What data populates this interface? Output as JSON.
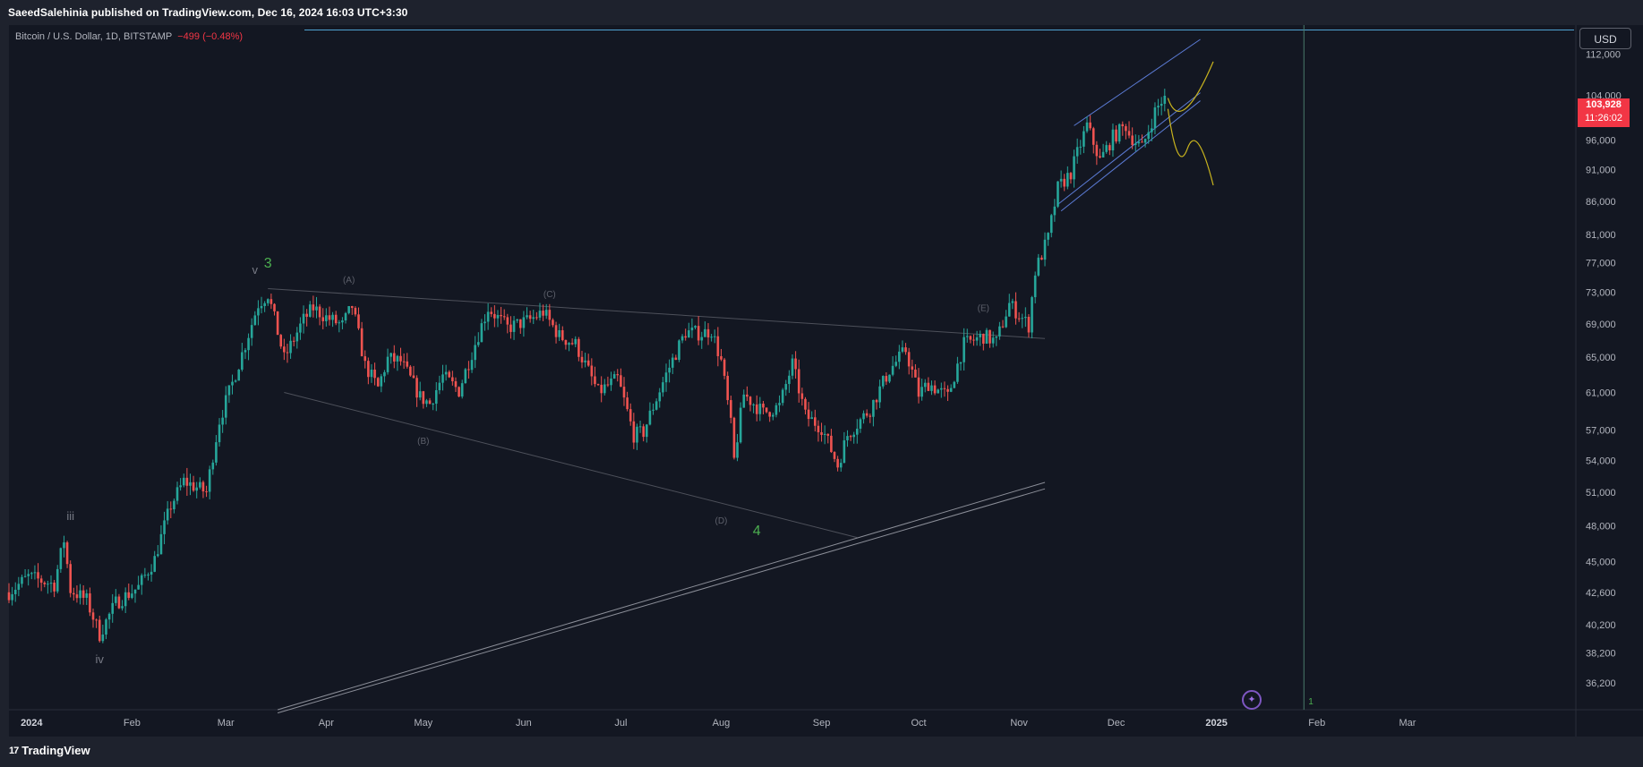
{
  "header": {
    "published": "SaeedSalehinia published on TradingView.com, Dec 16, 2024 16:03 UTC+3:30"
  },
  "legend": {
    "symbol": "Bitcoin / U.S. Dollar, 1D, BITSTAMP",
    "change": "−499 (−0.48%)"
  },
  "price_scale": {
    "currency": "USD",
    "last_price": "103,928",
    "countdown": "11:26:02"
  },
  "footer": {
    "brand": "TradingView",
    "logo_mark": "17"
  },
  "colors": {
    "background": "#131722",
    "up": "#26a69a",
    "down": "#ef5350",
    "channel": "#5b7bd5",
    "projection": "#c9b41e",
    "wave_green": "#4caf50",
    "wave_label": "#787b86",
    "hline": "#4fa3d1"
  },
  "chart_data": {
    "type": "candlestick",
    "symbol": "BTCUSD",
    "timeframe": "1D",
    "exchange": "BITSTAMP",
    "y_scale": "log",
    "ylim": [
      34500,
      118000
    ],
    "y_ticks": [
      "112,000",
      "104,000",
      "96,000",
      "91,000",
      "86,000",
      "81,000",
      "77,000",
      "73,000",
      "69,000",
      "65,000",
      "61,000",
      "57,000",
      "54,000",
      "51,000",
      "48,000",
      "45,000",
      "42,600",
      "40,200",
      "38,200",
      "36,200"
    ],
    "y_tick_values": [
      112000,
      104000,
      96000,
      91000,
      86000,
      81000,
      77000,
      73000,
      69000,
      65000,
      61000,
      57000,
      54000,
      51000,
      48000,
      45000,
      42600,
      40200,
      38200,
      36200
    ],
    "x_ticks": [
      "2024",
      "Feb",
      "Mar",
      "Apr",
      "May",
      "Jun",
      "Jul",
      "Aug",
      "Sep",
      "Oct",
      "Nov",
      "Dec",
      "2025",
      "Feb",
      "Mar"
    ],
    "x_tick_dates": [
      "2024-01-01",
      "2024-02-01",
      "2024-03-01",
      "2024-04-01",
      "2024-05-01",
      "2024-06-01",
      "2024-07-01",
      "2024-08-01",
      "2024-09-01",
      "2024-10-01",
      "2024-11-01",
      "2024-12-01",
      "2025-01-01",
      "2025-02-01",
      "2025-03-01"
    ],
    "xlim": [
      "2023-12-25",
      "2025-04-22"
    ],
    "price_path": [
      [
        "2023-12-25",
        42600
      ],
      [
        "2023-12-31",
        43800
      ],
      [
        "2024-01-08",
        43200
      ],
      [
        "2024-01-11",
        46800
      ],
      [
        "2024-01-13",
        42800
      ],
      [
        "2024-01-18",
        42000
      ],
      [
        "2024-01-22",
        39500
      ],
      [
        "2024-01-27",
        41800
      ],
      [
        "2024-02-03",
        43000
      ],
      [
        "2024-02-08",
        45200
      ],
      [
        "2024-02-13",
        49800
      ],
      [
        "2024-02-17",
        52000
      ],
      [
        "2024-02-24",
        51000
      ],
      [
        "2024-02-28",
        58000
      ],
      [
        "2024-03-03",
        62000
      ],
      [
        "2024-03-07",
        66500
      ],
      [
        "2024-03-11",
        71500
      ],
      [
        "2024-03-14",
        72800
      ],
      [
        "2024-03-19",
        64800
      ],
      [
        "2024-03-25",
        69500
      ],
      [
        "2024-03-28",
        71000
      ],
      [
        "2024-04-01",
        69800
      ],
      [
        "2024-04-06",
        68800
      ],
      [
        "2024-04-09",
        71200
      ],
      [
        "2024-04-13",
        64000
      ],
      [
        "2024-04-17",
        61500
      ],
      [
        "2024-04-20",
        64800
      ],
      [
        "2024-04-24",
        64500
      ],
      [
        "2024-04-30",
        60500
      ],
      [
        "2024-05-03",
        59800
      ],
      [
        "2024-05-07",
        62800
      ],
      [
        "2024-05-12",
        61200
      ],
      [
        "2024-05-16",
        65500
      ],
      [
        "2024-05-21",
        71000
      ],
      [
        "2024-05-27",
        68500
      ],
      [
        "2024-06-03",
        69500
      ],
      [
        "2024-06-07",
        70500
      ],
      [
        "2024-06-12",
        67500
      ],
      [
        "2024-06-17",
        66500
      ],
      [
        "2024-06-24",
        61000
      ],
      [
        "2024-06-30",
        62500
      ],
      [
        "2024-07-05",
        56500
      ],
      [
        "2024-07-08",
        56800
      ],
      [
        "2024-07-15",
        63000
      ],
      [
        "2024-07-21",
        68000
      ],
      [
        "2024-07-26",
        67800
      ],
      [
        "2024-07-29",
        68200
      ],
      [
        "2024-08-01",
        64500
      ],
      [
        "2024-08-04",
        57500
      ],
      [
        "2024-08-05",
        54000
      ],
      [
        "2024-08-08",
        60800
      ],
      [
        "2024-08-14",
        58800
      ],
      [
        "2024-08-19",
        59500
      ],
      [
        "2024-08-23",
        64200
      ],
      [
        "2024-08-27",
        58500
      ],
      [
        "2024-09-01",
        57300
      ],
      [
        "2024-09-06",
        53500
      ],
      [
        "2024-09-09",
        56500
      ],
      [
        "2024-09-16",
        59200
      ],
      [
        "2024-09-22",
        63500
      ],
      [
        "2024-09-27",
        65800
      ],
      [
        "2024-10-01",
        60800
      ],
      [
        "2024-10-04",
        62000
      ],
      [
        "2024-10-10",
        60500
      ],
      [
        "2024-10-15",
        66500
      ],
      [
        "2024-10-21",
        67500
      ],
      [
        "2024-10-25",
        66800
      ],
      [
        "2024-10-29",
        71500
      ],
      [
        "2024-11-04",
        68800
      ],
      [
        "2024-11-06",
        75800
      ],
      [
        "2024-11-10",
        80500
      ],
      [
        "2024-11-13",
        88000
      ],
      [
        "2024-11-17",
        90500
      ],
      [
        "2024-11-22",
        98500
      ],
      [
        "2024-11-26",
        92500
      ],
      [
        "2024-11-30",
        96500
      ],
      [
        "2024-12-04",
        98500
      ],
      [
        "2024-12-05",
        97000
      ],
      [
        "2024-12-09",
        94500
      ],
      [
        "2024-12-13",
        101000
      ],
      [
        "2024-12-16",
        103928
      ]
    ],
    "annotations": {
      "wave_labels": [
        "iii",
        "iv",
        "v",
        "3",
        "4",
        "(A)",
        "(B)",
        "(C)",
        "(D)",
        "(E)"
      ],
      "marker_1": "1"
    }
  }
}
